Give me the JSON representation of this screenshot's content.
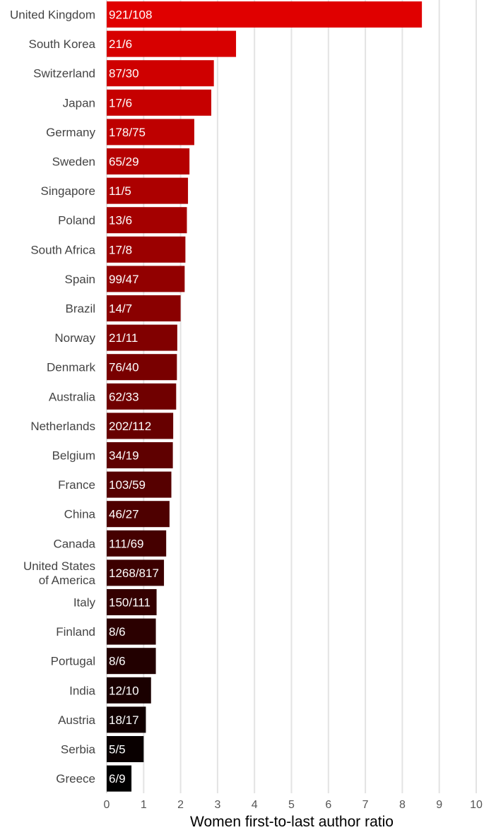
{
  "chart_data": {
    "type": "bar",
    "orientation": "horizontal",
    "xlabel": "Women first-to-last author ratio",
    "ylabel": "",
    "xlim": [
      0,
      10
    ],
    "x_ticks": [
      "0",
      "1",
      "2",
      "3",
      "4",
      "5",
      "6",
      "7",
      "8",
      "9",
      "10"
    ],
    "grid": "vertical",
    "color_gradient": [
      "#e00000",
      "#000000"
    ],
    "categories": [
      "United Kingdom",
      "South Korea",
      "Switzerland",
      "Japan",
      "Germany",
      "Sweden",
      "Singapore",
      "Poland",
      "South Africa",
      "Spain",
      "Brazil",
      "Norway",
      "Denmark",
      "Australia",
      "Netherlands",
      "Belgium",
      "France",
      "China",
      "Canada",
      "United States of America",
      "Italy",
      "Finland",
      "Portugal",
      "India",
      "Austria",
      "Serbia",
      "Greece"
    ],
    "category_lines": [
      [
        "United Kingdom"
      ],
      [
        "South Korea"
      ],
      [
        "Switzerland"
      ],
      [
        "Japan"
      ],
      [
        "Germany"
      ],
      [
        "Sweden"
      ],
      [
        "Singapore"
      ],
      [
        "Poland"
      ],
      [
        "South Africa"
      ],
      [
        "Spain"
      ],
      [
        "Brazil"
      ],
      [
        "Norway"
      ],
      [
        "Denmark"
      ],
      [
        "Australia"
      ],
      [
        "Netherlands"
      ],
      [
        "Belgium"
      ],
      [
        "France"
      ],
      [
        "China"
      ],
      [
        "Canada"
      ],
      [
        "United States",
        "of America"
      ],
      [
        "Italy"
      ],
      [
        "Finland"
      ],
      [
        "Portugal"
      ],
      [
        "India"
      ],
      [
        "Austria"
      ],
      [
        "Serbia"
      ],
      [
        "Greece"
      ]
    ],
    "values": [
      8.53,
      3.5,
      2.9,
      2.83,
      2.37,
      2.24,
      2.2,
      2.17,
      2.13,
      2.11,
      2.0,
      1.91,
      1.9,
      1.88,
      1.8,
      1.79,
      1.75,
      1.7,
      1.61,
      1.55,
      1.35,
      1.33,
      1.33,
      1.2,
      1.06,
      1.0,
      0.67
    ],
    "data_labels": [
      "921/108",
      "21/6",
      "87/30",
      "17/6",
      "178/75",
      "65/29",
      "11/5",
      "13/6",
      "17/8",
      "99/47",
      "14/7",
      "21/11",
      "76/40",
      "62/33",
      "202/112",
      "34/19",
      "103/59",
      "46/27",
      "111/69",
      "1268/817",
      "150/111",
      "8/6",
      "8/6",
      "12/10",
      "18/17",
      "5/5",
      "6/9"
    ]
  }
}
